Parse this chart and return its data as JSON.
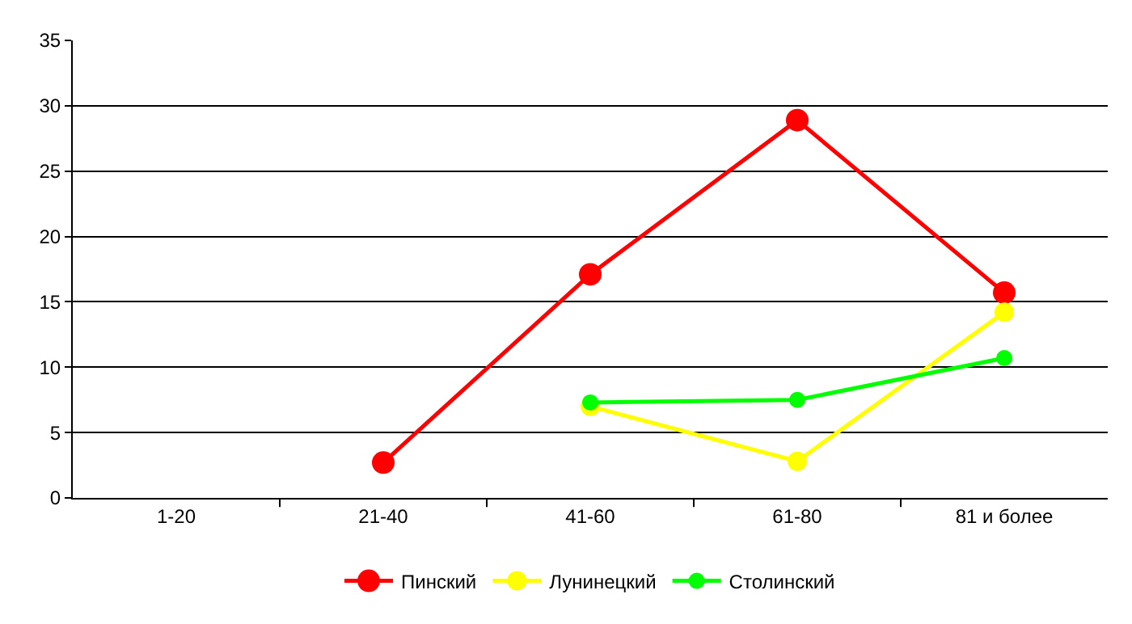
{
  "chart_data": {
    "type": "line",
    "categories": [
      "1-20",
      "21-40",
      "41-60",
      "61-80",
      "81 и более"
    ],
    "series": [
      {
        "name": "Пинский",
        "color": "#ff0000",
        "values": [
          null,
          2.7,
          17.1,
          28.9,
          15.7
        ]
      },
      {
        "name": "Лунинецкий",
        "color": "#ffff00",
        "values": [
          null,
          null,
          7.0,
          2.8,
          14.2
        ]
      },
      {
        "name": "Столинский",
        "color": "#00ff00",
        "values": [
          null,
          null,
          7.3,
          7.5,
          10.7
        ]
      }
    ],
    "ylim": [
      0,
      35
    ],
    "yticks": [
      0,
      5,
      10,
      15,
      20,
      25,
      30,
      35
    ],
    "grid": "y",
    "legend": "bottom",
    "marker": "circle",
    "line_style": "solid"
  }
}
